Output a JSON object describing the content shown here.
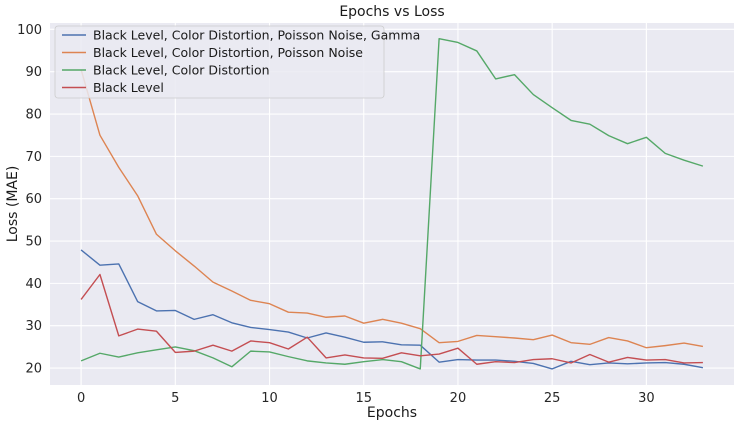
{
  "chart_data": {
    "type": "line",
    "title": "Epochs vs Loss",
    "xlabel": "Epochs",
    "ylabel": "Loss (MAE)",
    "xlim": [
      -1.65,
      34.65
    ],
    "ylim": [
      16.0,
      101.5
    ],
    "xticks": [
      0,
      5,
      10,
      15,
      20,
      25,
      30
    ],
    "yticks": [
      20,
      30,
      40,
      50,
      60,
      70,
      80,
      90,
      100
    ],
    "grid": true,
    "legend_position": "top-left",
    "background_color": "#eaeaf2",
    "series": [
      {
        "name": "Black Level, Color Distortion, Poisson Noise, Gamma",
        "color": "#4c72b0",
        "x": [
          0,
          1,
          2,
          3,
          4,
          5,
          6,
          7,
          8,
          9,
          10,
          11,
          12,
          13,
          14,
          15,
          16,
          17,
          18,
          19,
          20,
          21,
          22,
          23,
          24,
          25,
          26,
          27,
          28,
          29,
          30,
          31,
          32,
          33
        ],
        "values": [
          47.9,
          44.3,
          44.6,
          35.7,
          33.5,
          33.6,
          31.5,
          32.6,
          30.7,
          29.6,
          29.1,
          28.5,
          27.1,
          28.3,
          27.3,
          26.1,
          26.2,
          25.5,
          25.4,
          21.4,
          22.0,
          21.9,
          21.9,
          21.6,
          21.1,
          19.8,
          21.6,
          20.8,
          21.2,
          21.0,
          21.2,
          21.3,
          20.9,
          20.1
        ]
      },
      {
        "name": "Black Level, Color Distortion, Poisson Noise",
        "color": "#dd8452",
        "x": [
          0,
          1,
          2,
          3,
          4,
          5,
          6,
          7,
          8,
          9,
          10,
          11,
          12,
          13,
          14,
          15,
          16,
          17,
          18,
          19,
          20,
          21,
          22,
          23,
          24,
          25,
          26,
          27,
          28,
          29,
          30,
          31,
          32,
          33
        ],
        "values": [
          90.5,
          75.0,
          67.4,
          60.7,
          51.6,
          47.7,
          44.1,
          40.3,
          38.2,
          36.0,
          35.2,
          33.2,
          33.0,
          32.0,
          32.3,
          30.6,
          31.5,
          30.6,
          29.3,
          26.0,
          26.3,
          27.7,
          27.4,
          27.1,
          26.7,
          27.8,
          26.0,
          25.6,
          27.2,
          26.4,
          24.8,
          25.3,
          25.9,
          25.1
        ]
      },
      {
        "name": "Black Level, Color Distortion",
        "color": "#55a868",
        "x": [
          0,
          1,
          2,
          3,
          4,
          5,
          6,
          7,
          8,
          9,
          10,
          11,
          12,
          13,
          14,
          15,
          16,
          17,
          18,
          19,
          20,
          21,
          22,
          23,
          24,
          25,
          26,
          27,
          28,
          29,
          30,
          31,
          32,
          33
        ],
        "values": [
          21.7,
          23.5,
          22.6,
          23.6,
          24.3,
          25.0,
          24.1,
          22.4,
          20.3,
          24.0,
          23.8,
          22.7,
          21.7,
          21.2,
          20.9,
          21.5,
          22.0,
          21.5,
          19.8,
          97.8,
          96.9,
          94.9,
          88.3,
          89.3,
          84.6,
          81.5,
          78.5,
          77.6,
          74.9,
          73.0,
          74.5,
          70.7,
          69.1,
          67.7
        ]
      },
      {
        "name": "Black Level",
        "color": "#c44e52",
        "x": [
          0,
          1,
          2,
          3,
          4,
          5,
          6,
          7,
          8,
          9,
          10,
          11,
          12,
          13,
          14,
          15,
          16,
          17,
          18,
          19,
          20,
          21,
          22,
          23,
          24,
          25,
          26,
          27,
          28,
          29,
          30,
          31,
          32,
          33
        ],
        "values": [
          36.2,
          42.1,
          27.6,
          29.2,
          28.7,
          23.7,
          24.0,
          25.4,
          24.0,
          26.4,
          26.0,
          24.5,
          27.3,
          22.4,
          23.1,
          22.4,
          22.3,
          23.6,
          22.9,
          23.3,
          24.7,
          20.9,
          21.5,
          21.3,
          22.0,
          22.2,
          21.2,
          23.2,
          21.4,
          22.5,
          21.9,
          22.0,
          21.2,
          21.3
        ]
      }
    ]
  }
}
